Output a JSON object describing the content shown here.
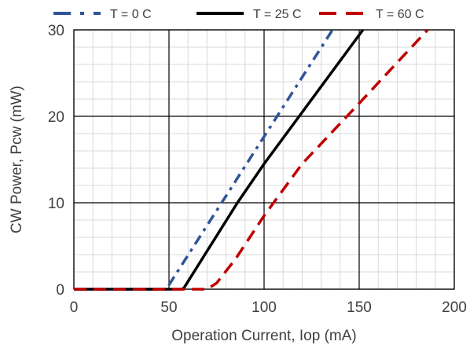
{
  "chart_data": {
    "type": "line",
    "xlabel": "Operation Current, Iop (mA)",
    "ylabel": "CW Power, Pcw (mW)",
    "xlim": [
      0,
      200
    ],
    "ylim": [
      0,
      30
    ],
    "x_ticks": [
      0,
      50,
      100,
      150,
      200
    ],
    "y_ticks": [
      0,
      10,
      20,
      30
    ],
    "x_tick_labels": [
      "0",
      "50",
      "100",
      "150",
      "200"
    ],
    "y_tick_labels": [
      "0",
      "10",
      "20",
      "30"
    ],
    "x_minor_step": 10,
    "y_minor_step": 2,
    "grid": true,
    "legend": "top",
    "series": [
      {
        "name": "T = 0 C",
        "color": "#2f5597",
        "dash": "dash-dot",
        "x": [
          0,
          49,
          50,
          136
        ],
        "y": [
          0,
          0,
          0.5,
          30
        ]
      },
      {
        "name": "T = 25 C",
        "color": "#000000",
        "dash": "solid",
        "x": [
          0,
          57,
          58,
          86,
          100,
          152
        ],
        "y": [
          0,
          0,
          0.2,
          10,
          14.5,
          30
        ]
      },
      {
        "name": "T = 60 C",
        "color": "#c00000",
        "dash": "dashed",
        "x": [
          0,
          70,
          75,
          85,
          100,
          120,
          150,
          186
        ],
        "y": [
          0,
          0,
          0.7,
          3.5,
          8.5,
          14.5,
          21.5,
          30
        ]
      }
    ]
  }
}
